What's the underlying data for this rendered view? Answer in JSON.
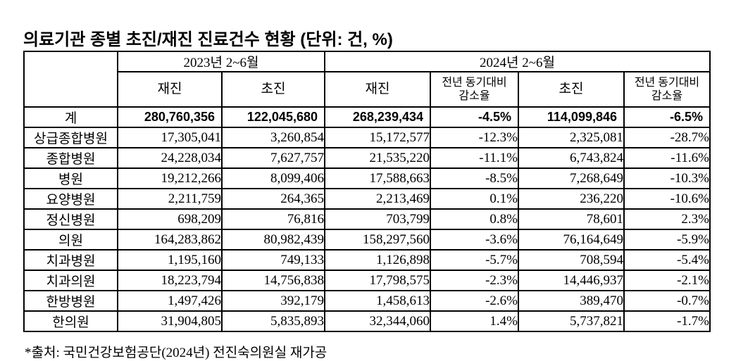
{
  "title": "의료기관 종별 초진/재진 진료건수 현황 (단위: 건, %)",
  "table": {
    "corner_label": "",
    "col_groups": [
      {
        "label": "2023년 2~6월"
      },
      {
        "label": "2024년 2~6월"
      }
    ],
    "sub_headers": [
      "재진",
      "초진",
      "재진",
      "전년 동기대비\n감소율",
      "초진",
      "전년 동기대비\n감소율"
    ],
    "column_keys": [
      "repeat-2023",
      "first-2023",
      "repeat-2024",
      "rate-repeat-2024",
      "first-2024",
      "rate-first-2024"
    ],
    "rows": [
      {
        "label": "계",
        "emphasis": true,
        "values": [
          "280,760,356",
          "122,045,680",
          "268,239,434",
          "-4.5%",
          "114,099,846",
          "-6.5%"
        ]
      },
      {
        "label": "상급종합병원",
        "values": [
          "17,305,041",
          "3,260,854",
          "15,172,577",
          "-12.3%",
          "2,325,081",
          "-28.7%"
        ]
      },
      {
        "label": "종합병원",
        "values": [
          "24,228,034",
          "7,627,757",
          "21,535,220",
          "-11.1%",
          "6,743,824",
          "-11.6%"
        ]
      },
      {
        "label": "병원",
        "values": [
          "19,212,266",
          "8,099,406",
          "17,588,663",
          "-8.5%",
          "7,268,649",
          "-10.3%"
        ]
      },
      {
        "label": "요양병원",
        "values": [
          "2,211,759",
          "264,365",
          "2,213,469",
          "0.1%",
          "236,220",
          "-10.6%"
        ]
      },
      {
        "label": "정신병원",
        "values": [
          "698,209",
          "76,816",
          "703,799",
          "0.8%",
          "78,601",
          "2.3%"
        ]
      },
      {
        "label": "의원",
        "values": [
          "164,283,862",
          "80,982,439",
          "158,297,560",
          "-3.6%",
          "76,164,649",
          "-5.9%"
        ]
      },
      {
        "label": "치과병원",
        "values": [
          "1,195,160",
          "749,133",
          "1,126,898",
          "-5.7%",
          "708,594",
          "-5.4%"
        ]
      },
      {
        "label": "치과의원",
        "values": [
          "18,223,794",
          "14,756,838",
          "17,798,575",
          "-2.3%",
          "14,446,937",
          "-2.1%"
        ]
      },
      {
        "label": "한방병원",
        "values": [
          "1,497,426",
          "392,179",
          "1,458,613",
          "-2.6%",
          "389,470",
          "-0.7%"
        ]
      },
      {
        "label": "한의원",
        "values": [
          "31,904,805",
          "5,835,893",
          "32,344,060",
          "1.4%",
          "5,737,821",
          "-1.7%"
        ]
      }
    ]
  },
  "source_note": "*출처: 국민건강보험공단(2024년) 전진숙의원실 재가공",
  "colors": {
    "background": "#ffffff",
    "text": "#000000",
    "border": "#000000"
  }
}
